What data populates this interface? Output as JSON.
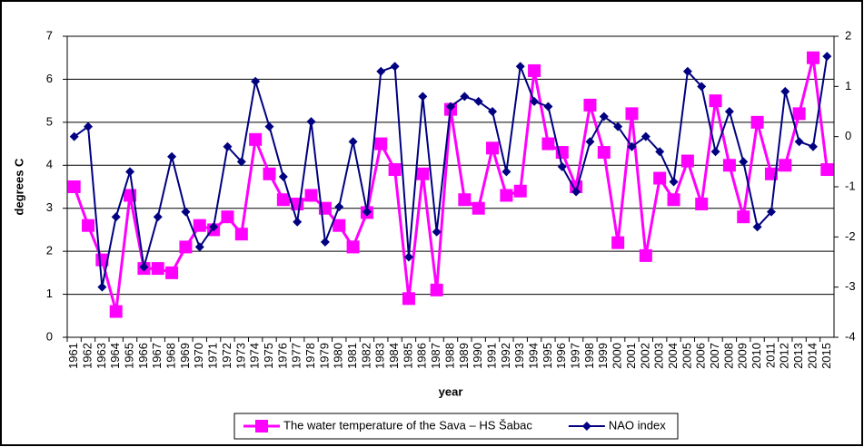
{
  "chart_data": {
    "type": "line",
    "y_label": "degrees C",
    "x_label": "year",
    "categories": [
      "1961",
      "1962",
      "1963",
      "1964",
      "1965",
      "1966",
      "1967",
      "1968",
      "1969",
      "1970",
      "1971",
      "1972",
      "1973",
      "1974",
      "1975",
      "1976",
      "1977",
      "1978",
      "1979",
      "1980",
      "1981",
      "1982",
      "1983",
      "1984",
      "1985",
      "1986",
      "1987",
      "1988",
      "1989",
      "1990",
      "1991",
      "1992",
      "1993",
      "1994",
      "1995",
      "1996",
      "1997",
      "1998",
      "1999",
      "2000",
      "2001",
      "2002",
      "2003",
      "2004",
      "2005",
      "2006",
      "2007",
      "2008",
      "2009",
      "2010",
      "2011",
      "2012",
      "2013",
      "2014",
      "2015"
    ],
    "series": [
      {
        "name": "The water temperature of the Sava – HS Šabac",
        "color": "#ff00ff",
        "marker": "square",
        "axis": "y",
        "values": [
          3.5,
          2.6,
          1.8,
          0.6,
          3.3,
          1.6,
          1.6,
          1.5,
          2.1,
          2.6,
          2.5,
          2.8,
          2.4,
          4.6,
          3.8,
          3.2,
          3.1,
          3.3,
          3.0,
          2.6,
          2.1,
          2.9,
          4.5,
          3.9,
          0.9,
          3.8,
          1.1,
          5.3,
          3.2,
          3.0,
          4.4,
          3.3,
          3.4,
          6.2,
          4.5,
          4.3,
          3.5,
          5.4,
          4.3,
          2.2,
          5.2,
          1.9,
          3.7,
          3.2,
          4.1,
          3.1,
          5.5,
          4.0,
          2.8,
          5.0,
          3.8,
          4.0,
          5.2,
          6.5,
          3.9
        ]
      },
      {
        "name": "NAO index",
        "color": "#000080",
        "marker": "diamond",
        "axis": "y2",
        "values": [
          0.0,
          0.2,
          -3.0,
          -1.6,
          -0.7,
          -2.6,
          -1.6,
          -0.4,
          -1.5,
          -2.2,
          -1.8,
          -0.2,
          -0.5,
          1.1,
          0.2,
          -0.8,
          -1.7,
          0.3,
          -2.1,
          -1.4,
          -0.1,
          -1.5,
          1.3,
          1.4,
          -2.4,
          0.8,
          -1.9,
          0.6,
          0.8,
          0.7,
          0.5,
          -0.7,
          1.4,
          0.7,
          0.6,
          -0.6,
          -1.1,
          -0.1,
          0.4,
          0.2,
          -0.2,
          0.0,
          -0.3,
          -0.9,
          1.3,
          1.0,
          -0.3,
          0.5,
          -0.5,
          -1.8,
          -1.5,
          0.9,
          -0.1,
          -0.2,
          1.6
        ]
      }
    ],
    "ylim": [
      0,
      7
    ],
    "yticks": [
      0,
      1,
      2,
      3,
      4,
      5,
      6,
      7
    ],
    "y2lim": [
      -4,
      2
    ],
    "y2ticks": [
      -4,
      -3,
      -2,
      -1,
      0,
      1,
      2
    ],
    "grid": true,
    "legend": "bottom"
  }
}
